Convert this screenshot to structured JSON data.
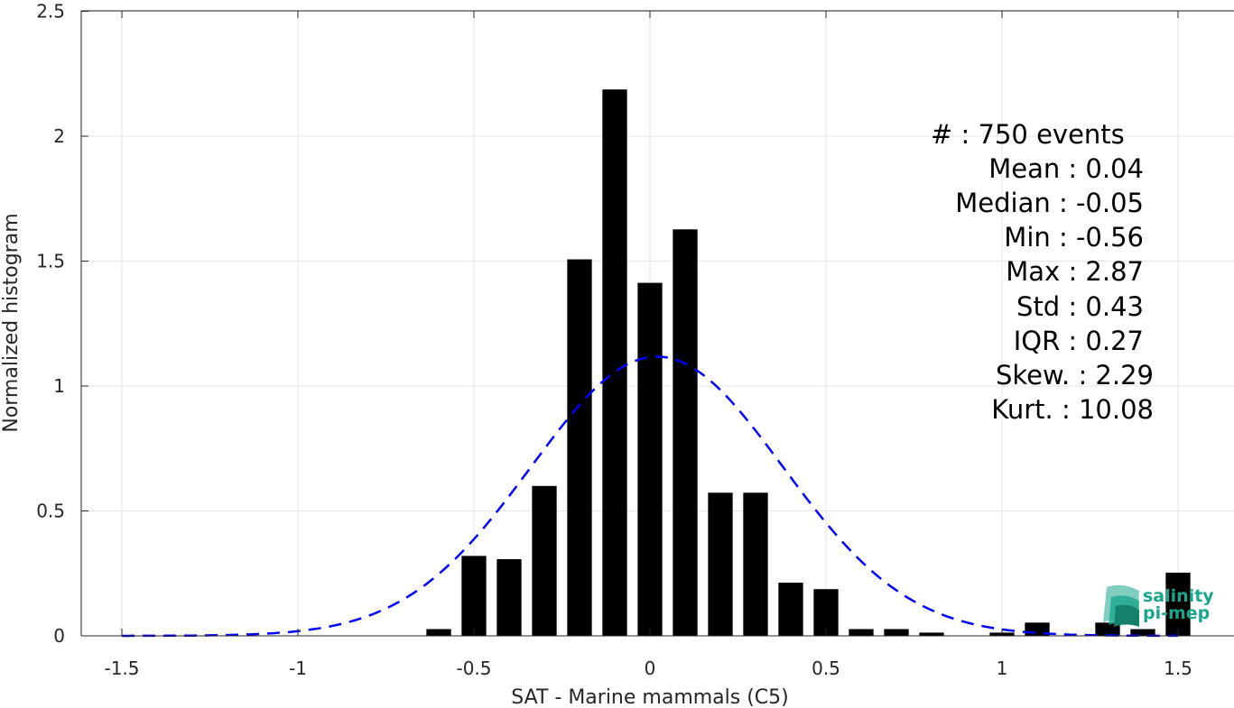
{
  "chart_data": {
    "type": "bar",
    "title": "",
    "xlabel": "SAT - Marine mammals (C5)",
    "ylabel": "Normalized histogram",
    "xlim": [
      -1.6,
      1.6
    ],
    "ylim": [
      0,
      2.5
    ],
    "grid": true,
    "x_ticks": [
      -1.5,
      -1,
      -0.5,
      0,
      0.5,
      1,
      1.5
    ],
    "x_tick_labels": [
      "-1.5",
      "-1",
      "-0.5",
      "0",
      "0.5",
      "1",
      "1.5"
    ],
    "y_ticks": [
      0,
      0.5,
      1,
      1.5,
      2,
      2.5
    ],
    "y_tick_labels": [
      "0",
      "0.5",
      "1",
      "1.5",
      "2",
      "2.5"
    ],
    "bar_width": 0.07,
    "bars": [
      {
        "x": -0.6,
        "y": 0.027
      },
      {
        "x": -0.5,
        "y": 0.32
      },
      {
        "x": -0.4,
        "y": 0.307
      },
      {
        "x": -0.3,
        "y": 0.6
      },
      {
        "x": -0.2,
        "y": 1.507
      },
      {
        "x": -0.1,
        "y": 2.187
      },
      {
        "x": 0.0,
        "y": 1.413
      },
      {
        "x": 0.1,
        "y": 1.627
      },
      {
        "x": 0.2,
        "y": 0.573
      },
      {
        "x": 0.3,
        "y": 0.573
      },
      {
        "x": 0.4,
        "y": 0.213
      },
      {
        "x": 0.5,
        "y": 0.187
      },
      {
        "x": 0.6,
        "y": 0.027
      },
      {
        "x": 0.7,
        "y": 0.027
      },
      {
        "x": 0.8,
        "y": 0.013
      },
      {
        "x": 1.0,
        "y": 0.013
      },
      {
        "x": 1.1,
        "y": 0.053
      },
      {
        "x": 1.3,
        "y": 0.053
      },
      {
        "x": 1.4,
        "y": 0.027
      },
      {
        "x": 1.5,
        "y": 0.253
      }
    ],
    "fit_curve": {
      "style": "dashed",
      "color": "#0000ff",
      "mean": 0.02,
      "std": 0.357,
      "x_range": [
        -1.5,
        1.5
      ]
    },
    "bar_color": "#000000",
    "annotations": [
      "#  : 750 events",
      "Mean : 0.04",
      "Median : -0.05",
      "Min : -0.56",
      "Max : 2.87",
      "Std : 0.43",
      "IQR : 0.27",
      "Skew. : 2.29",
      "Kurt. : 10.08"
    ]
  },
  "logo": {
    "line1": "salinity",
    "line2": "pi-mep",
    "color": "#1aa68c"
  }
}
